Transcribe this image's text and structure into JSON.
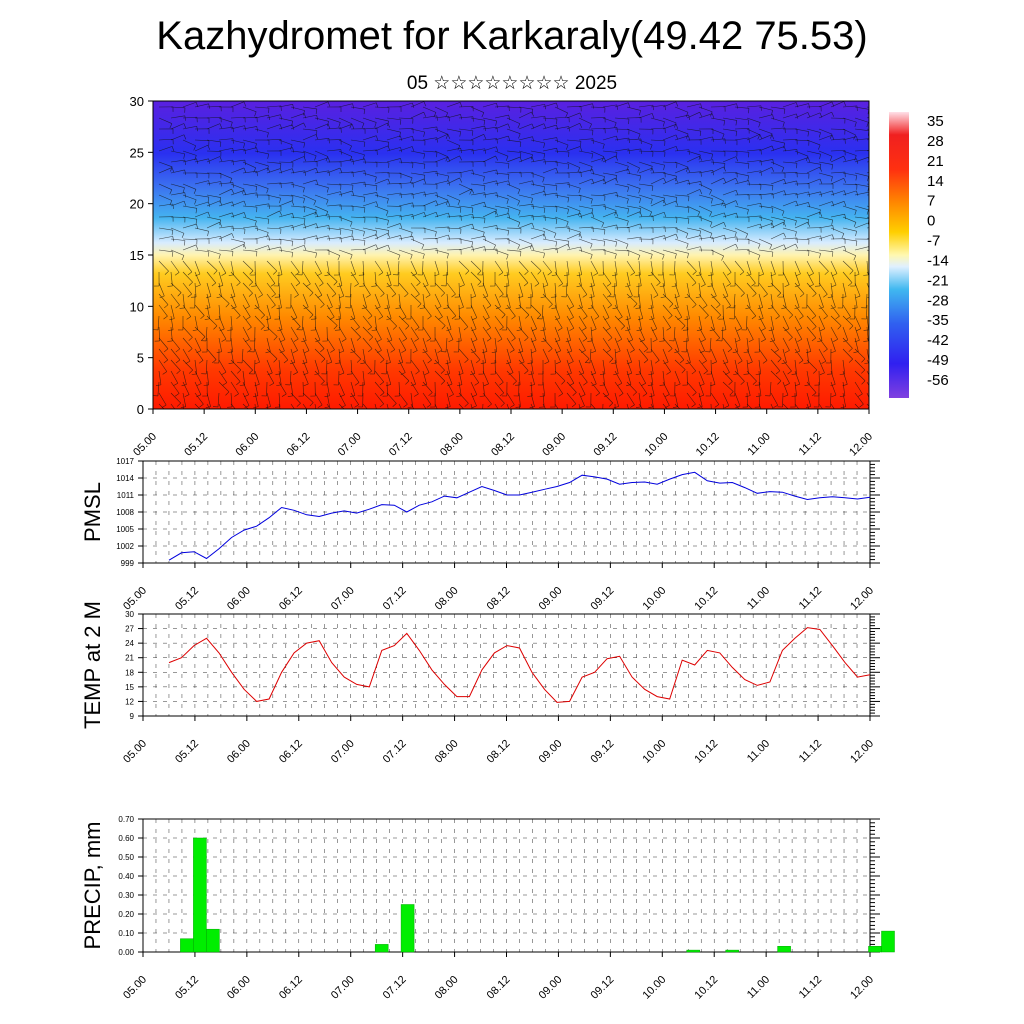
{
  "title": "Kazhydromet for Karkaraly(49.42 75.53)",
  "subtitle": "05 ☆☆☆☆☆☆☆☆ 2025",
  "colors": {
    "pmsl_line": "#0000dd",
    "temp_line": "#dd0000",
    "precip_bar": "#00ee00",
    "colorbar_stops": [
      "#ffe0e8",
      "#f02020",
      "#ff4010",
      "#ff8a00",
      "#ffd000",
      "#fff8b0",
      "#e0f0ff",
      "#40b8f0",
      "#3060f0",
      "#3020f0",
      "#8040e0"
    ]
  },
  "chart_data": [
    {
      "type": "heatmap",
      "name": "cross-section",
      "ylim": [
        0,
        30
      ],
      "yticks": [
        "0",
        "5",
        "10",
        "15",
        "20",
        "25",
        "30"
      ],
      "xticks": [
        "05.00",
        "05.12",
        "06.00",
        "06.12",
        "07.00",
        "07.12",
        "08.00",
        "08.12",
        "09.00",
        "09.12",
        "10.00",
        "10.12",
        "11.00",
        "11.12",
        "12.00"
      ],
      "colorbar_labels": [
        "35",
        "28",
        "21",
        "14",
        "7",
        "0",
        "-7",
        "-14",
        "-21",
        "-28",
        "-35",
        "-42",
        "-49",
        "-56"
      ]
    },
    {
      "type": "line",
      "ylabel": "PMSL",
      "ylim": [
        999,
        1017
      ],
      "yticks": [
        "999",
        "1002",
        "1005",
        "1008",
        "1011",
        "1014",
        "1017"
      ],
      "xticks": [
        "05.00",
        "05.12",
        "06.00",
        "06.12",
        "07.00",
        "07.12",
        "08.00",
        "08.12",
        "09.00",
        "09.12",
        "10.00",
        "10.12",
        "11.00",
        "11.12",
        "12.00"
      ],
      "x_hours": [
        0,
        3,
        6,
        9,
        12,
        15,
        18,
        21,
        24,
        27,
        30,
        33,
        36,
        39,
        42,
        45,
        48,
        51,
        54,
        57,
        60,
        63,
        66,
        69,
        72,
        75,
        78,
        81,
        84,
        87,
        90,
        93,
        96,
        99,
        102,
        105,
        108,
        111,
        114,
        117,
        120,
        123,
        126,
        129,
        132,
        135,
        138,
        141,
        144,
        147,
        150,
        153,
        156,
        159,
        162,
        165,
        168
      ],
      "values": [
        999.5,
        1000.8,
        1001.0,
        999.8,
        1001.5,
        1003.5,
        1004.8,
        1005.5,
        1007.0,
        1008.8,
        1008.3,
        1007.5,
        1007.2,
        1007.8,
        1008.2,
        1007.8,
        1008.5,
        1009.3,
        1009.2,
        1008.0,
        1009.2,
        1009.8,
        1010.8,
        1010.5,
        1011.5,
        1012.5,
        1011.8,
        1011.0,
        1011.0,
        1011.5,
        1012.0,
        1012.5,
        1013.2,
        1014.5,
        1014.2,
        1013.8,
        1012.9,
        1013.2,
        1013.3,
        1012.9,
        1013.8,
        1014.6,
        1015.0,
        1013.5,
        1013.1,
        1013.2,
        1012.3,
        1011.3,
        1011.6,
        1011.5,
        1010.8,
        1010.2,
        1010.5,
        1010.7,
        1010.5,
        1010.3,
        1010.6
      ]
    },
    {
      "type": "line",
      "ylabel": "TEMP at 2 M",
      "ylim": [
        9,
        30
      ],
      "yticks": [
        "9",
        "12",
        "15",
        "18",
        "21",
        "24",
        "27",
        "30"
      ],
      "xticks": [
        "05.00",
        "05.12",
        "06.00",
        "06.12",
        "07.00",
        "07.12",
        "08.00",
        "08.12",
        "09.00",
        "09.12",
        "10.00",
        "10.12",
        "11.00",
        "11.12",
        "12.00"
      ],
      "x_hours": [
        0,
        3,
        6,
        9,
        12,
        15,
        18,
        21,
        24,
        27,
        30,
        33,
        36,
        39,
        42,
        45,
        48,
        51,
        54,
        57,
        60,
        63,
        66,
        69,
        72,
        75,
        78,
        81,
        84,
        87,
        90,
        93,
        96,
        99,
        102,
        105,
        108,
        111,
        114,
        117,
        120,
        123,
        126,
        129,
        132,
        135,
        138,
        141,
        144,
        147,
        150,
        153,
        156,
        159,
        162,
        165,
        168
      ],
      "values": [
        20.0,
        21.0,
        23.5,
        25.0,
        22.0,
        18.0,
        14.5,
        12.0,
        12.5,
        18.0,
        22.0,
        24.0,
        24.5,
        20.0,
        17.0,
        15.5,
        15.0,
        22.5,
        23.5,
        26.0,
        22.5,
        18.5,
        15.5,
        13.0,
        13.0,
        18.5,
        22.0,
        23.5,
        23.0,
        18.0,
        14.5,
        11.8,
        12.0,
        17.0,
        18.0,
        20.8,
        21.3,
        17.0,
        14.5,
        13.0,
        12.5,
        20.5,
        19.5,
        22.5,
        22.0,
        19.0,
        16.5,
        15.3,
        16.0,
        22.5,
        25.0,
        27.2,
        26.8,
        23.5,
        20.0,
        17.0,
        17.5
      ]
    },
    {
      "type": "bar",
      "ylabel": "PRECIP, mm",
      "ylim": [
        0,
        0.7
      ],
      "yticks": [
        "0.00",
        "0.10",
        "0.20",
        "0.30",
        "0.40",
        "0.50",
        "0.60",
        "0.70"
      ],
      "xticks": [
        "05.00",
        "05.12",
        "06.00",
        "06.12",
        "07.00",
        "07.12",
        "08.00",
        "08.12",
        "09.00",
        "09.12",
        "10.00",
        "10.12",
        "11.00",
        "11.12",
        "12.00"
      ],
      "x_hours": [
        6,
        9,
        12,
        51,
        57,
        123,
        132,
        144,
        165,
        168
      ],
      "values": [
        0.07,
        0.6,
        0.12,
        0.04,
        0.25,
        0.01,
        0.01,
        0.03,
        0.03,
        0.11
      ]
    }
  ]
}
